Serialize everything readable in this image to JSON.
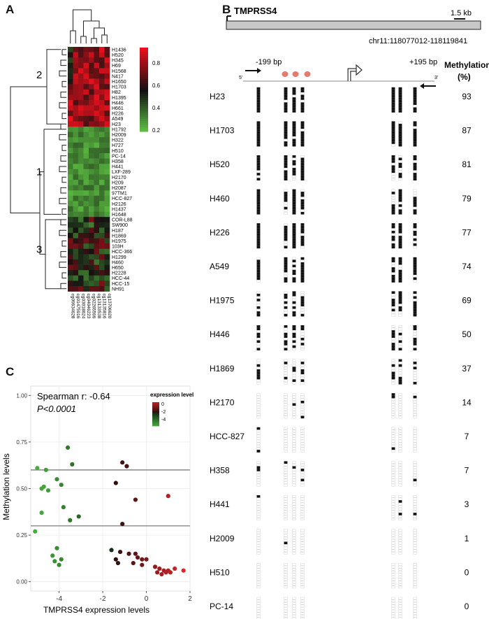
{
  "panels": {
    "a": "A",
    "b": "B",
    "c": "C"
  },
  "heatmap": {
    "cluster_labels": [
      "2",
      "1",
      "3"
    ],
    "colorbar_ticks": [
      "0.8",
      "0.6",
      "0.4",
      "0.2"
    ],
    "rows": [
      "H1436",
      "H520",
      "H345",
      "H69",
      "H1568",
      "N417",
      "H1650",
      "H1703",
      "H82",
      "H1395",
      "H446",
      "H661",
      "H226",
      "A549",
      "H23",
      "H1792",
      "H2009",
      "H322",
      "H727",
      "H510",
      "PC-14",
      "H358",
      "H441",
      "LXF-289",
      "H2170",
      "H209",
      "H2087",
      "97TM1",
      "HCC-827",
      "H2126",
      "H1437",
      "H1648",
      "COR-L88",
      "SW900",
      "H187",
      "H1869",
      "H1975",
      "103H",
      "HCC-366",
      "H1299",
      "H460",
      "H650",
      "H2228",
      "HCC-44",
      "HCC-15",
      "NH91"
    ],
    "columns": [
      "cg09934628",
      "cg01475916",
      "cg03018624",
      "cg04046223",
      "cg02265599",
      "cg13133538",
      "cg13135816",
      "cg13706620"
    ],
    "row_cluster": [
      2,
      2,
      2,
      2,
      2,
      2,
      2,
      2,
      2,
      2,
      2,
      2,
      2,
      2,
      2,
      1,
      1,
      1,
      1,
      1,
      1,
      1,
      1,
      1,
      1,
      1,
      1,
      1,
      1,
      1,
      1,
      1,
      3,
      3,
      3,
      3,
      3,
      3,
      3,
      3,
      3,
      3,
      3,
      3,
      3,
      3
    ],
    "colors": {
      "high": "#e8101c",
      "mid": "#111111",
      "low": "#5fc544"
    }
  },
  "gene": {
    "name": "TMPRSS4",
    "scale": "1.5 kb",
    "coords": "chr11:118077012-118119841",
    "primer_left": "-199 bp",
    "primer_right": "+195 bp",
    "end5": "5'",
    "end3": "3'"
  },
  "methylation": {
    "header_line1": "Methylation",
    "header_line2": "(%)",
    "samples": [
      {
        "name": "H23",
        "pct": "93"
      },
      {
        "name": "H1703",
        "pct": "87"
      },
      {
        "name": "H520",
        "pct": "81"
      },
      {
        "name": "H460",
        "pct": "79"
      },
      {
        "name": "H226",
        "pct": "77"
      },
      {
        "name": "A549",
        "pct": "74"
      },
      {
        "name": "H1975",
        "pct": "69"
      },
      {
        "name": "H446",
        "pct": "50"
      },
      {
        "name": "H1869",
        "pct": "37"
      },
      {
        "name": "H2170",
        "pct": "14"
      },
      {
        "name": "HCC-827",
        "pct": "7"
      },
      {
        "name": "H358",
        "pct": "7"
      },
      {
        "name": "H441",
        "pct": "3"
      },
      {
        "name": "H2009",
        "pct": "1"
      },
      {
        "name": "H510",
        "pct": "0"
      },
      {
        "name": "PC-14",
        "pct": "0"
      }
    ]
  },
  "chart_data": {
    "type": "scatter",
    "title": "",
    "xlabel": "TMPRSS4 expression levels",
    "ylabel": "Methylation levels",
    "xlim": [
      -5.3,
      2.0
    ],
    "ylim": [
      -0.05,
      1.05
    ],
    "x_ticks": [
      "-4",
      "-2",
      "0",
      "2"
    ],
    "y_ticks": [
      "0.00",
      "0.25",
      "0.50",
      "0.75",
      "1.00"
    ],
    "annotation_line1": "Spearman r: -0.64",
    "annotation_line2": "P<0.0001",
    "legend_title": "expression level",
    "legend_ticks": [
      "0",
      "-2",
      "-4"
    ],
    "cutoff_lines": [
      0.6,
      0.3
    ],
    "points": [
      {
        "x": -5.0,
        "y": 0.61
      },
      {
        "x": -4.6,
        "y": 0.6
      },
      {
        "x": -3.6,
        "y": 0.72
      },
      {
        "x": -3.4,
        "y": 0.63
      },
      {
        "x": -4.1,
        "y": 0.55
      },
      {
        "x": -3.9,
        "y": 0.52
      },
      {
        "x": -4.7,
        "y": 0.51
      },
      {
        "x": -4.8,
        "y": 0.5
      },
      {
        "x": -4.5,
        "y": 0.49
      },
      {
        "x": -3.8,
        "y": 0.4
      },
      {
        "x": -4.8,
        "y": 0.37
      },
      {
        "x": -3.1,
        "y": 0.35
      },
      {
        "x": -3.5,
        "y": 0.33
      },
      {
        "x": -5.1,
        "y": 0.27
      },
      {
        "x": -4.1,
        "y": 0.18
      },
      {
        "x": -4.3,
        "y": 0.14
      },
      {
        "x": -3.9,
        "y": 0.12
      },
      {
        "x": -4.2,
        "y": 0.11
      },
      {
        "x": -4.0,
        "y": 0.09
      },
      {
        "x": -1.1,
        "y": 0.64
      },
      {
        "x": -0.9,
        "y": 0.62
      },
      {
        "x": -1.4,
        "y": 0.53
      },
      {
        "x": -0.5,
        "y": 0.44
      },
      {
        "x": 1.0,
        "y": 0.46
      },
      {
        "x": -1.1,
        "y": 0.31
      },
      {
        "x": -1.6,
        "y": 0.17
      },
      {
        "x": -1.2,
        "y": 0.16
      },
      {
        "x": -0.8,
        "y": 0.15
      },
      {
        "x": -0.5,
        "y": 0.15
      },
      {
        "x": -0.4,
        "y": 0.13
      },
      {
        "x": -0.2,
        "y": 0.12
      },
      {
        "x": 0.0,
        "y": 0.12
      },
      {
        "x": -1.4,
        "y": 0.12
      },
      {
        "x": -1.3,
        "y": 0.1
      },
      {
        "x": -0.6,
        "y": 0.1
      },
      {
        "x": -0.2,
        "y": 0.09
      },
      {
        "x": 0.4,
        "y": 0.08
      },
      {
        "x": 0.6,
        "y": 0.07
      },
      {
        "x": 0.8,
        "y": 0.06
      },
      {
        "x": 1.0,
        "y": 0.06
      },
      {
        "x": 1.3,
        "y": 0.07
      },
      {
        "x": 1.7,
        "y": 0.06
      },
      {
        "x": 0.5,
        "y": 0.05
      },
      {
        "x": 0.7,
        "y": 0.04
      },
      {
        "x": 1.1,
        "y": 0.05
      },
      {
        "x": 0.9,
        "y": 0.05
      }
    ]
  }
}
